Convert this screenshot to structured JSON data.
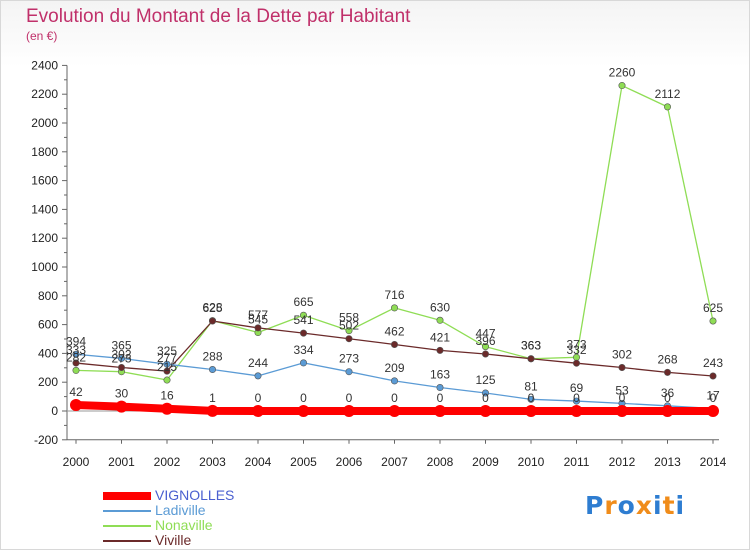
{
  "chart_data": {
    "type": "line",
    "title": "Evolution du Montant de la Dette par Habitant",
    "subtitle": "(en €)",
    "x": [
      "2000",
      "2001",
      "2002",
      "2003",
      "2004",
      "2005",
      "2006",
      "2007",
      "2008",
      "2009",
      "2010",
      "2011",
      "2012",
      "2013",
      "2014"
    ],
    "ylim": [
      -200,
      2400
    ],
    "yticks": [
      -200,
      0,
      200,
      400,
      600,
      800,
      1000,
      1200,
      1400,
      1600,
      1800,
      2000,
      2200,
      2400
    ],
    "grid": false,
    "legend_position": "bottom-left",
    "series": [
      {
        "name": "VIGNOLLES",
        "color": "#ff0000",
        "values": [
          42,
          30,
          16,
          1,
          0,
          0,
          0,
          0,
          0,
          0,
          0,
          0,
          0,
          0,
          0
        ],
        "labels": [
          "42",
          "30",
          "16",
          "1",
          "0",
          "0",
          "0",
          "0",
          "0",
          "0",
          "0",
          "0",
          "0",
          "0",
          "0"
        ]
      },
      {
        "name": "Ladiville",
        "color": "#5b9bd5",
        "values": [
          394,
          365,
          325,
          288,
          244,
          334,
          273,
          209,
          163,
          125,
          81,
          69,
          53,
          36,
          17
        ],
        "labels": [
          "394",
          "365",
          "325",
          "288",
          "244",
          "334",
          "273",
          "209",
          "163",
          "125",
          "81",
          "69",
          "53",
          "36",
          "17"
        ]
      },
      {
        "name": "Nonaville",
        "color": "#8fdd55",
        "values": [
          282,
          273,
          215,
          628,
          545,
          665,
          558,
          716,
          630,
          447,
          363,
          373,
          2260,
          2112,
          625
        ],
        "labels": [
          "282",
          "273",
          "215",
          "628",
          "545",
          "665",
          "558",
          "716",
          "630",
          "447",
          "363",
          "373",
          "2260",
          "2112",
          "625"
        ]
      },
      {
        "name": "Viville",
        "color": "#6b2a2a",
        "values": [
          333,
          302,
          277,
          625,
          577,
          541,
          502,
          462,
          421,
          396,
          363,
          332,
          302,
          268,
          243
        ],
        "labels": [
          "333",
          "302",
          "277",
          "625",
          "577",
          "541",
          "502",
          "462",
          "421",
          "396",
          "363",
          "332",
          "302",
          "268",
          "243"
        ]
      }
    ]
  },
  "legend": [
    {
      "label": "VIGNOLLES",
      "color": "#ff0000"
    },
    {
      "label": "Ladiville",
      "color": "#5b9bd5"
    },
    {
      "label": "Nonaville",
      "color": "#8fdd55"
    },
    {
      "label": "Viville",
      "color": "#6b2a2a"
    }
  ],
  "logo": {
    "text": "Proxiti",
    "colors": [
      "#2e7dd1",
      "#f08c1a",
      "#2e7dd1",
      "#f08c1a",
      "#2e7dd1",
      "#f08c1a",
      "#2e7dd1"
    ]
  }
}
